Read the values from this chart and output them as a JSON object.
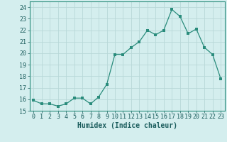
{
  "x": [
    0,
    1,
    2,
    3,
    4,
    5,
    6,
    7,
    8,
    9,
    10,
    11,
    12,
    13,
    14,
    15,
    16,
    17,
    18,
    19,
    20,
    21,
    22,
    23
  ],
  "y": [
    15.9,
    15.6,
    15.6,
    15.4,
    15.6,
    16.1,
    16.1,
    15.6,
    16.2,
    17.3,
    19.9,
    19.9,
    20.5,
    21.0,
    22.0,
    21.6,
    22.0,
    23.8,
    23.2,
    21.7,
    22.1,
    20.5,
    19.9,
    17.8
  ],
  "line_color": "#2a8c7c",
  "marker_color": "#2a8c7c",
  "bg_color": "#d4eeee",
  "grid_color": "#b8d8d8",
  "xlabel": "Humidex (Indice chaleur)",
  "ylim": [
    15,
    24.5
  ],
  "yticks": [
    15,
    16,
    17,
    18,
    19,
    20,
    21,
    22,
    23,
    24
  ],
  "xticks": [
    0,
    1,
    2,
    3,
    4,
    5,
    6,
    7,
    8,
    9,
    10,
    11,
    12,
    13,
    14,
    15,
    16,
    17,
    18,
    19,
    20,
    21,
    22,
    23
  ],
  "xlim": [
    -0.5,
    23.5
  ],
  "tick_fontsize": 6.0,
  "xlabel_fontsize": 7.0,
  "line_width": 0.9,
  "marker_size": 2.2,
  "spine_color": "#2a8c7c"
}
